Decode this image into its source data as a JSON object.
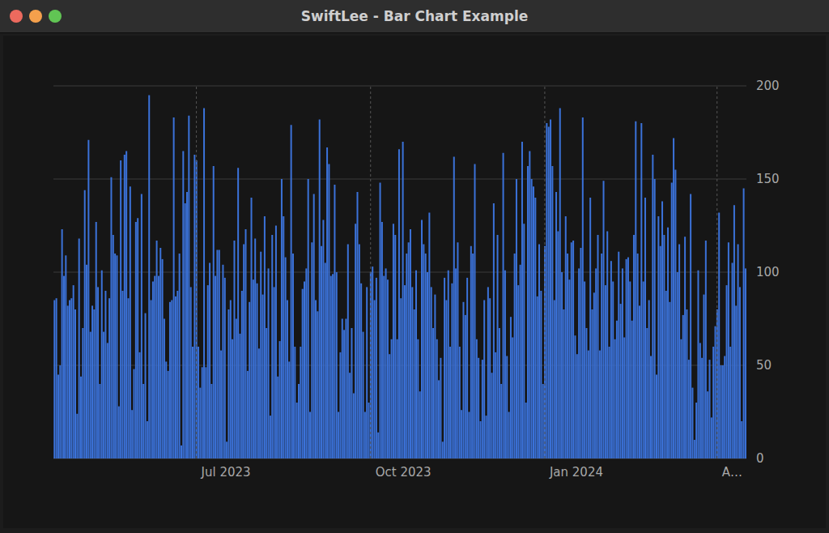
{
  "chart_data": {
    "type": "bar",
    "title": "SwiftLee - Bar Chart Example",
    "categories": [
      null,
      null,
      null,
      null,
      null,
      null,
      null,
      null,
      null,
      null,
      null,
      null,
      null,
      null,
      null,
      null,
      null,
      null,
      null,
      null,
      null,
      null,
      null,
      null,
      null,
      null,
      null,
      null,
      null,
      null,
      null,
      null,
      null,
      null,
      null,
      null,
      null,
      null,
      null,
      null,
      null,
      null,
      null,
      null,
      null,
      null,
      null,
      null,
      null,
      null,
      null,
      null,
      null,
      null,
      null,
      null,
      null,
      null,
      null,
      null,
      null,
      null,
      null,
      null,
      null,
      null,
      null,
      null,
      null,
      null,
      null,
      null,
      null,
      null,
      null,
      "Jul 2023",
      null,
      null,
      null,
      null,
      null,
      null,
      null,
      null,
      null,
      null,
      null,
      null,
      null,
      null,
      null,
      null,
      null,
      null,
      null,
      null,
      null,
      null,
      null,
      null,
      null,
      null,
      null,
      null,
      null,
      null,
      null,
      null,
      null,
      null,
      null,
      null,
      null,
      null,
      null,
      null,
      null,
      null,
      null,
      null,
      null,
      null,
      null,
      null,
      null,
      null,
      null,
      null,
      null,
      null,
      null,
      null,
      null,
      null,
      null,
      null,
      null,
      null,
      null,
      null,
      null,
      null,
      null,
      null,
      null,
      null,
      null,
      null,
      null,
      null,
      null,
      null,
      null,
      null,
      null,
      null,
      null,
      null,
      null,
      null,
      null,
      null,
      null,
      null,
      null,
      null,
      null,
      "Oct 2023",
      null,
      null,
      null,
      null,
      null,
      null,
      null,
      null,
      null,
      null,
      null,
      null,
      null,
      null,
      null,
      null,
      null,
      null,
      null,
      null,
      null,
      null,
      null,
      null,
      null,
      null,
      null,
      null,
      null,
      null,
      null,
      null,
      null,
      null,
      null,
      null,
      null,
      null,
      null,
      null,
      null,
      null,
      null,
      null,
      null,
      null,
      null,
      null,
      null,
      null,
      null,
      null,
      null,
      null,
      null,
      null,
      null,
      null,
      null,
      null,
      null,
      null,
      null,
      null,
      null,
      null,
      null,
      null,
      null,
      null,
      null,
      null,
      null,
      null,
      null,
      null,
      null,
      null,
      null,
      null,
      null,
      null,
      null,
      null,
      null,
      null,
      null,
      null,
      null,
      null,
      null,
      "Jan 2024",
      null,
      null,
      null,
      null,
      null,
      null,
      null,
      null,
      null,
      null,
      null,
      null,
      null,
      null,
      null,
      null,
      null,
      null,
      null,
      null,
      null,
      null,
      null,
      null,
      null,
      null,
      null,
      null,
      null,
      null,
      null,
      null,
      null,
      null,
      null,
      null,
      null,
      null,
      null,
      null,
      null,
      null,
      null,
      null,
      null,
      null,
      null,
      null,
      null,
      null,
      null,
      null,
      null,
      null,
      null,
      null,
      null,
      null,
      null,
      null,
      null,
      null,
      null,
      null,
      null,
      null,
      null,
      null,
      null,
      null,
      null,
      null,
      null,
      null,
      null,
      null,
      null,
      null,
      null,
      null,
      null,
      null,
      null,
      null,
      null,
      null,
      null,
      null,
      null,
      null,
      "A…",
      null,
      null,
      null,
      null,
      null,
      null,
      null,
      null,
      null,
      null,
      null,
      null,
      null,
      null,
      null
    ],
    "values": [
      85,
      86,
      45,
      50,
      123,
      98,
      109,
      82,
      85,
      86,
      93,
      80,
      24,
      118,
      44,
      70,
      144,
      104,
      171,
      68,
      82,
      80,
      127,
      92,
      40,
      101,
      68,
      90,
      62,
      86,
      151,
      120,
      110,
      109,
      28,
      160,
      90,
      163,
      165,
      86,
      146,
      26,
      48,
      127,
      129,
      57,
      142,
      40,
      78,
      20,
      195,
      85,
      95,
      98,
      117,
      98,
      113,
      107,
      75,
      52,
      47,
      84,
      85,
      183,
      87,
      90,
      110,
      7,
      165,
      137,
      143,
      184,
      92,
      60,
      163,
      160,
      60,
      38,
      49,
      188,
      49,
      93,
      105,
      40,
      157,
      98,
      112,
      112,
      58,
      104,
      97,
      9,
      80,
      85,
      64,
      117,
      75,
      156,
      67,
      90,
      115,
      123,
      47,
      84,
      140,
      96,
      118,
      94,
      59,
      111,
      88,
      130,
      70,
      102,
      23,
      120,
      92,
      125,
      44,
      63,
      150,
      130,
      108,
      85,
      52,
      179,
      110,
      60,
      30,
      40,
      60,
      91,
      95,
      102,
      150,
      25,
      116,
      142,
      85,
      79,
      182,
      114,
      128,
      105,
      167,
      158,
      98,
      99,
      147,
      100,
      25,
      57,
      75,
      69,
      75,
      115,
      46,
      70,
      35,
      126,
      143,
      115,
      94,
      68,
      25,
      92,
      30,
      100,
      103,
      85,
      97,
      14,
      148,
      127,
      98,
      102,
      96,
      56,
      64,
      126,
      120,
      64,
      166,
      86,
      170,
      93,
      110,
      116,
      123,
      92,
      80,
      101,
      64,
      36,
      128,
      115,
      110,
      100,
      132,
      92,
      70,
      88,
      64,
      42,
      54,
      9,
      97,
      85,
      101,
      60,
      94,
      162,
      102,
      116,
      60,
      26,
      84,
      77,
      97,
      25,
      114,
      110,
      158,
      64,
      54,
      20,
      53,
      85,
      23,
      92,
      86,
      46,
      137,
      57,
      120,
      70,
      40,
      164,
      101,
      55,
      25,
      76,
      65,
      110,
      150,
      93,
      104,
      170,
      126,
      30,
      157,
      165,
      150,
      146,
      140,
      87,
      115,
      90,
      40,
      114,
      180,
      178,
      182,
      157,
      85,
      143,
      122,
      188,
      100,
      80,
      130,
      110,
      96,
      116,
      117,
      66,
      56,
      102,
      113,
      183,
      95,
      70,
      58,
      140,
      80,
      89,
      102,
      120,
      58,
      110,
      149,
      93,
      122,
      60,
      106,
      95,
      64,
      74,
      111,
      83,
      102,
      65,
      107,
      108,
      95,
      74,
      120,
      181,
      110,
      82,
      180,
      95,
      140,
      70,
      85,
      55,
      163,
      150,
      45,
      130,
      114,
      138,
      120,
      90,
      124,
      84,
      148,
      172,
      155,
      100,
      115,
      64,
      77,
      119,
      80,
      53,
      142,
      38,
      10,
      30,
      101,
      62,
      54,
      88,
      117,
      36,
      53,
      22,
      60,
      71,
      80,
      132,
      50,
      50,
      55,
      93,
      116,
      60,
      105,
      136,
      82,
      115,
      92,
      20,
      145,
      102
    ],
    "color": "#3b72d9",
    "ylim": [
      0,
      200
    ],
    "yticks": [
      0,
      50,
      100,
      150,
      200
    ],
    "grid": true
  }
}
